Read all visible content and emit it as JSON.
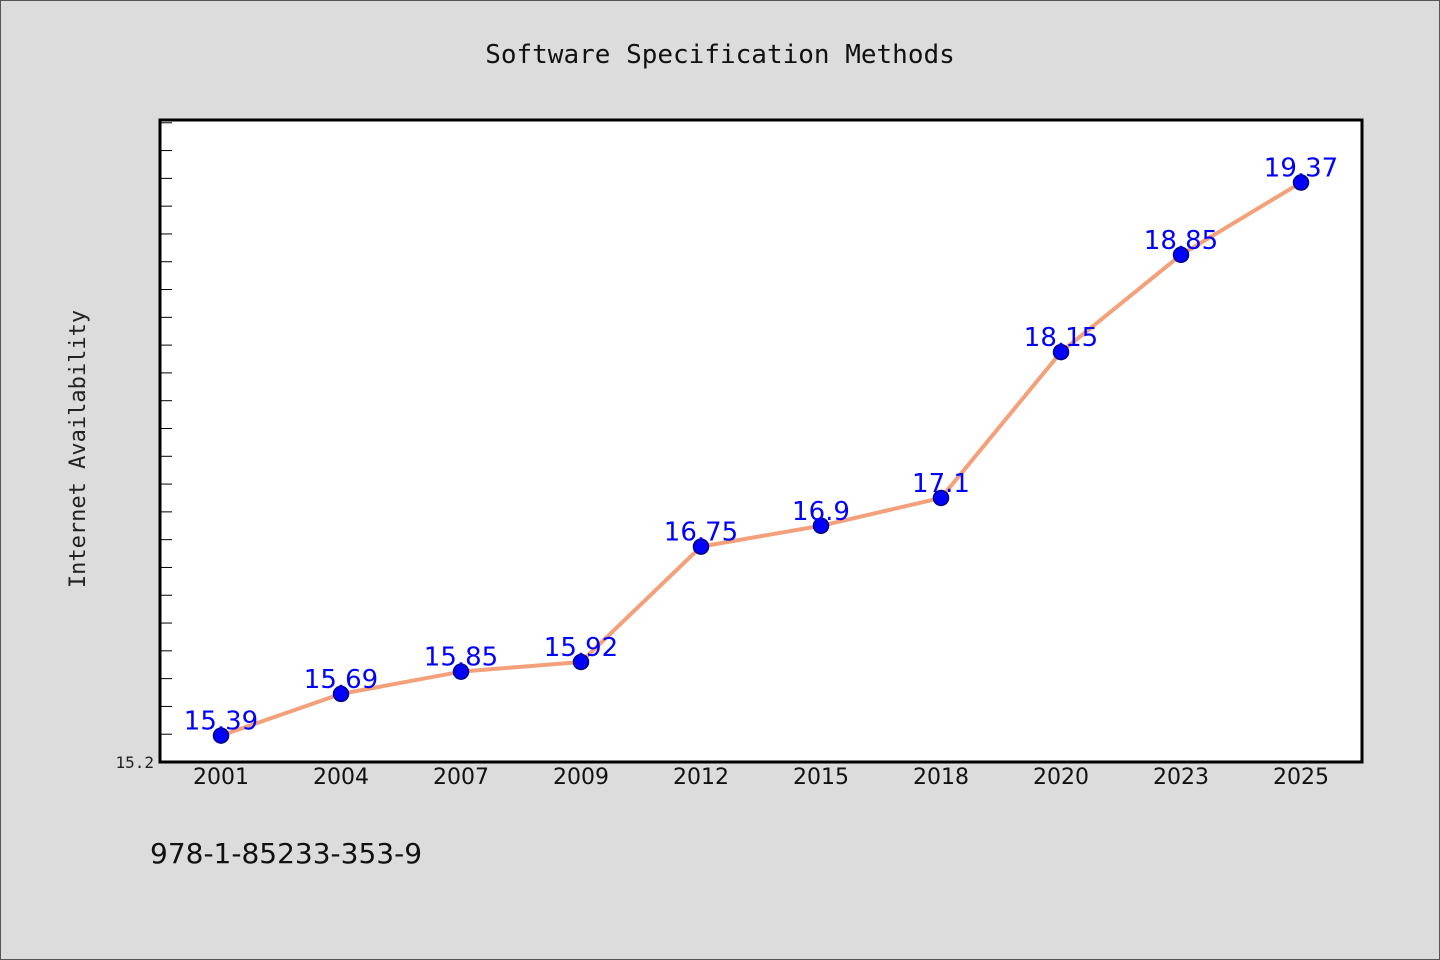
{
  "chart_data": {
    "type": "line",
    "title": "Software Specification Methods",
    "xlabel": "",
    "ylabel": "Internet Availability",
    "categories": [
      "2001",
      "2004",
      "2007",
      "2009",
      "2012",
      "2015",
      "2018",
      "2020",
      "2023",
      "2025"
    ],
    "series": [
      {
        "values": [
          15.39,
          15.69,
          15.85,
          15.92,
          16.75,
          16.9,
          17.1,
          18.15,
          18.85,
          19.37
        ]
      }
    ],
    "ylim": [
      15.2,
      19.82
    ],
    "yticks_labeled": [
      "15.2"
    ],
    "data_labels": [
      "15.39",
      "15.69",
      "15.85",
      "15.92",
      "16.75",
      "16.9",
      "17.1",
      "18.15",
      "18.85",
      "19.37"
    ],
    "grid": false,
    "colors": {
      "line": "#f4a07a",
      "marker": "#0000ff",
      "marker_edge": "#000080",
      "data_label": "#0000ff",
      "plot_bg": "#ffffff",
      "figure_bg": "#dcdcdc"
    }
  },
  "footer": {
    "isbn": "978-1-85233-353-9"
  }
}
